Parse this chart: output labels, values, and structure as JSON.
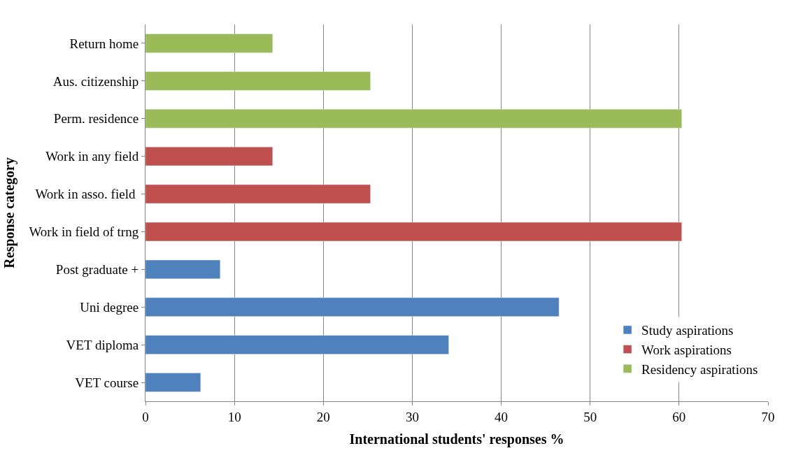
{
  "chart_data": {
    "type": "bar",
    "orientation": "horizontal",
    "xlabel": "International students' responses %",
    "ylabel": "Response category",
    "categories": [
      "Return home",
      "Aus. citizenship",
      "Perm. residence",
      "Work in any field",
      "Work in asso. field ",
      "Work in field of trng",
      "Post graduate +",
      "Uni degree",
      "VET diploma",
      "VET course"
    ],
    "series": [
      {
        "name": "Study aspirations",
        "color": "#4f81bd",
        "values": [
          null,
          null,
          null,
          null,
          null,
          null,
          8.4,
          46.5,
          34.1,
          6.2
        ]
      },
      {
        "name": "Work aspirations",
        "color": "#c0504d",
        "values": [
          null,
          null,
          null,
          14.3,
          25.3,
          60.3,
          null,
          null,
          null,
          null
        ]
      },
      {
        "name": "Residency aspirations",
        "color": "#9bbb59",
        "values": [
          14.3,
          25.3,
          60.3,
          null,
          null,
          null,
          null,
          null,
          null,
          null
        ]
      }
    ],
    "xlim": [
      0,
      70
    ],
    "xticks": [
      0,
      10,
      20,
      30,
      40,
      50,
      60,
      70
    ],
    "grid": "x",
    "legend": "bottom right"
  }
}
